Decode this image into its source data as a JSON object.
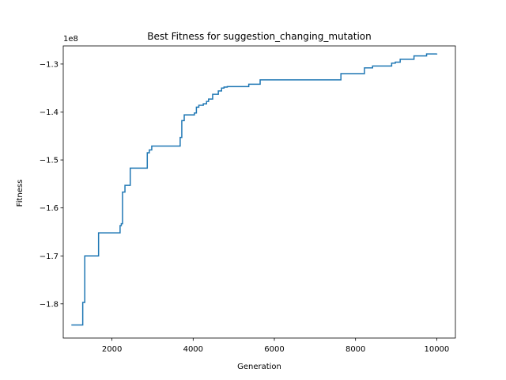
{
  "chart_data": {
    "type": "line",
    "title": "Best Fitness for suggestion_changing_mutation",
    "xlabel": "Generation",
    "ylabel": "Fitness",
    "offset_label": "1e8",
    "xlim": [
      800,
      10460
    ],
    "ylim": [
      -1.8713,
      -1.2622
    ],
    "x_ticks": [
      2000,
      4000,
      6000,
      8000,
      10000
    ],
    "x_tick_labels": [
      "2000",
      "4000",
      "6000",
      "8000",
      "10000"
    ],
    "y_ticks": [
      -1.8,
      -1.7,
      -1.6,
      -1.5,
      -1.4,
      -1.3
    ],
    "y_tick_labels": [
      "−1.8",
      "−1.7",
      "−1.6",
      "−1.5",
      "−1.4",
      "−1.3"
    ],
    "grid": false,
    "step": "post",
    "series_color": "#1f77b4",
    "series": [
      {
        "x": [
          1000,
          1280,
          1330,
          1670,
          2200,
          2230,
          2260,
          2320,
          2450,
          2870,
          2920,
          2980,
          3680,
          3720,
          3780,
          4030,
          4080,
          4140,
          4250,
          4330,
          4380,
          4480,
          4620,
          4700,
          4760,
          4840,
          5370,
          5650,
          7640,
          8220,
          8420,
          8890,
          8980,
          9100,
          9440,
          9750,
          10000
        ],
        "y": [
          -1.844,
          -1.797,
          -1.7,
          -1.652,
          -1.637,
          -1.633,
          -1.567,
          -1.553,
          -1.517,
          -1.485,
          -1.479,
          -1.471,
          -1.453,
          -1.418,
          -1.406,
          -1.402,
          -1.39,
          -1.386,
          -1.383,
          -1.378,
          -1.373,
          -1.363,
          -1.356,
          -1.35,
          -1.348,
          -1.347,
          -1.342,
          -1.333,
          -1.32,
          -1.308,
          -1.304,
          -1.298,
          -1.296,
          -1.29,
          -1.283,
          -1.279,
          -1.278
        ]
      }
    ]
  }
}
